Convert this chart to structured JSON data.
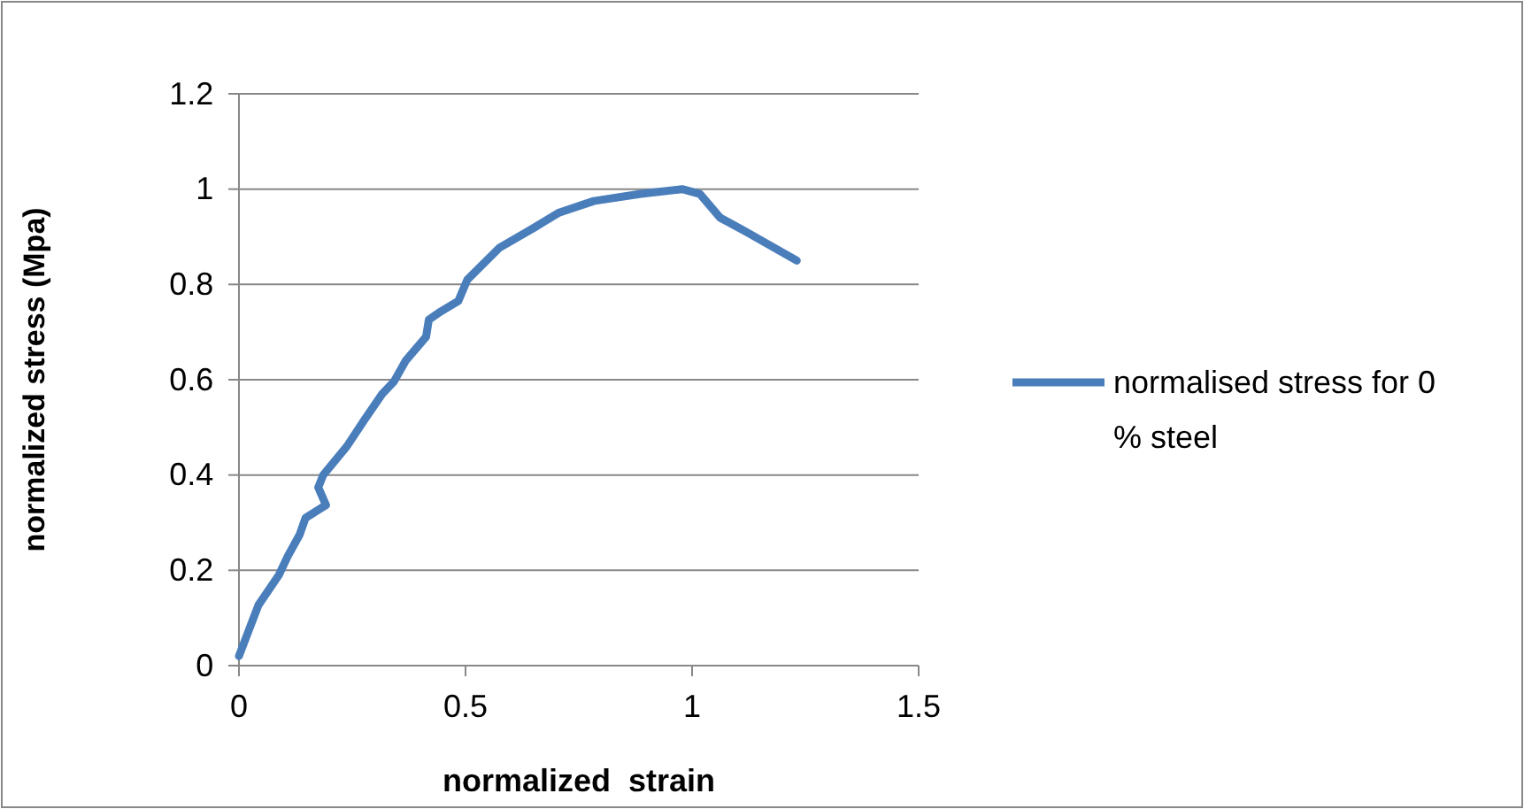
{
  "chart_data": {
    "type": "line",
    "xlabel": "normalized  strain",
    "ylabel": "normalized stress (Mpa)",
    "xlim": [
      0,
      1.5
    ],
    "xticks": [
      0,
      0.5,
      1,
      1.5
    ],
    "ylim": [
      0,
      1.2
    ],
    "yticks": [
      0,
      0.2,
      0.4,
      0.6,
      0.8,
      1,
      1.2
    ],
    "grid": "y",
    "legend": "right",
    "series": [
      {
        "name": "normalised stress for 0 % steel",
        "color": "#4a7ebb",
        "x": [
          0,
          0.043,
          0.088,
          0.108,
          0.134,
          0.147,
          0.192,
          0.175,
          0.186,
          0.238,
          0.277,
          0.316,
          0.342,
          0.368,
          0.413,
          0.419,
          0.445,
          0.484,
          0.504,
          0.575,
          0.653,
          0.705,
          0.783,
          0.887,
          0.978,
          1.017,
          1.062,
          1.12,
          1.231
        ],
        "values": [
          0.02,
          0.127,
          0.19,
          0.23,
          0.275,
          0.31,
          0.337,
          0.374,
          0.4,
          0.46,
          0.516,
          0.57,
          0.596,
          0.64,
          0.69,
          0.726,
          0.743,
          0.765,
          0.81,
          0.877,
          0.92,
          0.95,
          0.975,
          0.99,
          1.0,
          0.99,
          0.94,
          0.91,
          0.85
        ]
      }
    ]
  }
}
